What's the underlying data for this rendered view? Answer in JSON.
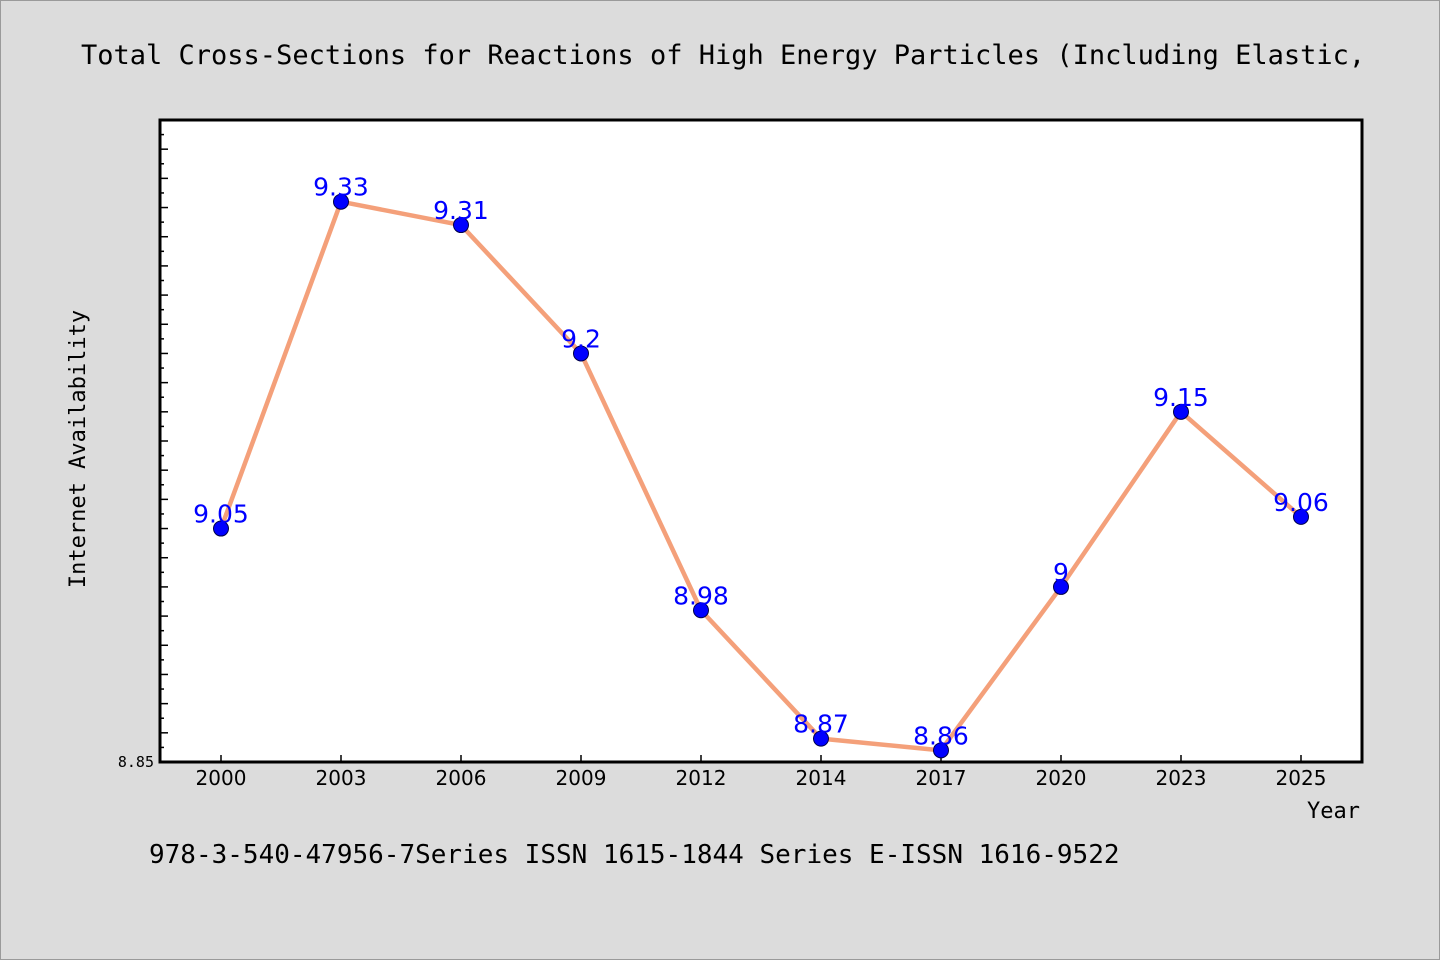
{
  "chart_data": {
    "type": "line",
    "title": "Total Cross-Sections for Reactions of High Energy Particles (Including Elastic,",
    "xlabel": "Year",
    "ylabel": "Internet Availability",
    "categories": [
      "2000",
      "2003",
      "2006",
      "2009",
      "2012",
      "2014",
      "2017",
      "2020",
      "2023",
      "2025"
    ],
    "series": [
      {
        "values": [
          9.05,
          9.33,
          9.31,
          9.2,
          8.98,
          8.87,
          8.86,
          9.0,
          9.15,
          9.06
        ],
        "labels": [
          "9.05",
          "9.33",
          "9.31",
          "9.2",
          "8.98",
          "8.87",
          "8.86",
          "9",
          "9.15",
          "9.06"
        ]
      }
    ],
    "ylim": [
      8.85,
      9.4
    ],
    "y_tick_labels": [
      "8.85"
    ],
    "grid": false,
    "legend": "none",
    "colors": {
      "line": "#f4a07a",
      "marker": "#0000ff",
      "data_label": "#0000ff",
      "plot_background": "#ffffff",
      "page_background": "#dcdcdc"
    }
  },
  "footer": {
    "text": "978-3-540-47956-7Series ISSN 1615-1844 Series E-ISSN 1616-9522"
  }
}
